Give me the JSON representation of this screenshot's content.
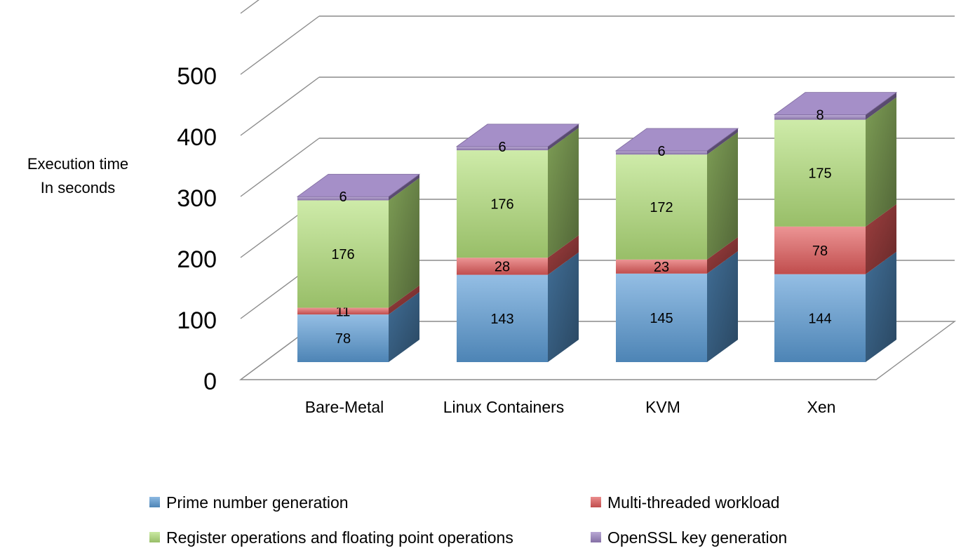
{
  "chart_data": {
    "type": "bar",
    "stacked": true,
    "three_d": true,
    "ylabel_lines": [
      "Execution time",
      "In seconds"
    ],
    "ylim": [
      0,
      500
    ],
    "yticks": [
      0,
      100,
      200,
      300,
      400,
      500
    ],
    "grid": true,
    "legend_position": "bottom",
    "categories": [
      "Bare-Metal",
      "Linux Containers",
      "KVM",
      "Xen"
    ],
    "series": [
      {
        "name": "Prime number generation",
        "values": [
          78,
          143,
          145,
          144
        ],
        "color": "#5b9bd5"
      },
      {
        "name": "Multi-threaded workload",
        "values": [
          11,
          28,
          23,
          78
        ],
        "color": "#e25a5a"
      },
      {
        "name": "Register operations and floating point operations",
        "values": [
          176,
          176,
          172,
          175
        ],
        "color": "#b3e07a"
      },
      {
        "name": "OpenSSL key generation",
        "values": [
          6,
          6,
          6,
          8
        ],
        "color": "#9b82c2"
      }
    ]
  }
}
